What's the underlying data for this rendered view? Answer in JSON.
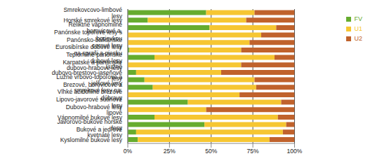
{
  "chart_data": {
    "type": "bar",
    "orientation": "horizontal",
    "stacked": true,
    "grid": true,
    "legend": "top-right",
    "categories": [
      "Smrekovcovo-limbové lesy",
      "Horské smrekové lesy",
      "Reliktné vápnomilné borovicové a.",
      "Panónske topoľové lesy s borievkou",
      "Panónsko-balkánske cerové lesy",
      "Eurosibírske dubové lesy na spraši a piesku",
      "Teplomilné panónske dubové lesy",
      "Karpatské a panónske dubovo-hrabové lesy",
      "Lužné dubovo-brestovo-jaseňové lesy",
      "Lužné vŕbovo-topoľové a jelšové lesy",
      "Brezové, borovicové a smrekové lesy na.",
      "Vlhké acidofilné brezové dúbravy",
      "Lipovo-javorové sutinové lesy",
      "Dubovo-hrabové lesy lipové",
      "Vápnomilné bukové lesy",
      "Javorovo-bukové horské lesy",
      "Bukové a jedľové kvetnaté lesy",
      "Kyslomilné bukové lesy"
    ],
    "series": [
      {
        "name": "FV",
        "color": "#66ac2e",
        "values": [
          47,
          12,
          49,
          0,
          0,
          1,
          16,
          0,
          5,
          10,
          15,
          0,
          36,
          0,
          16,
          46,
          5,
          6
        ]
      },
      {
        "name": "U1",
        "color": "#f6c632",
        "values": [
          29,
          59,
          40,
          80,
          73,
          67,
          72,
          68,
          51,
          66,
          62,
          67,
          56,
          47,
          74,
          49,
          88,
          79
        ]
      },
      {
        "name": "U2",
        "color": "#c0622c",
        "values": [
          24,
          29,
          11,
          20,
          27,
          32,
          12,
          32,
          44,
          24,
          23,
          33,
          8,
          53,
          10,
          5,
          7,
          15
        ]
      }
    ],
    "xlim": [
      0,
      100
    ],
    "xticks": [
      {
        "value": 0,
        "label": "0%"
      },
      {
        "value": 25,
        "label": "25%"
      },
      {
        "value": 50,
        "label": "50%"
      },
      {
        "value": 75,
        "label": "75%"
      },
      {
        "value": 100,
        "label": "100%"
      }
    ]
  }
}
